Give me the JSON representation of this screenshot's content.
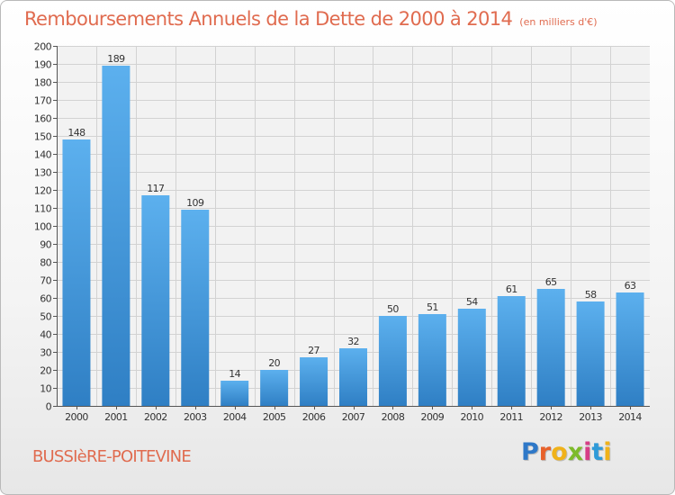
{
  "chart_data": {
    "type": "bar",
    "title": "Remboursements Annuels de la Dette de 2000 à 2014",
    "subtitle": "(en milliers d'€)",
    "categories": [
      "2000",
      "2001",
      "2002",
      "2003",
      "2004",
      "2005",
      "2006",
      "2007",
      "2008",
      "2009",
      "2010",
      "2011",
      "2012",
      "2013",
      "2014"
    ],
    "values": [
      148,
      189,
      117,
      109,
      14,
      20,
      27,
      32,
      50,
      51,
      54,
      61,
      65,
      58,
      63
    ],
    "xlabel": "",
    "ylabel": "",
    "ylim": [
      0,
      200
    ],
    "yticks": [
      0,
      10,
      20,
      30,
      40,
      50,
      60,
      70,
      80,
      90,
      100,
      110,
      120,
      130,
      140,
      150,
      160,
      170,
      180,
      190,
      200
    ],
    "grid": true,
    "bar_color": "#4a9fe0"
  },
  "footer": {
    "municipality": "BUSSIèRE-POITEVINE",
    "logo_letters": [
      "P",
      "r",
      "o",
      "x",
      "i",
      "t",
      "i"
    ],
    "logo_colors": [
      "#2e78c8",
      "#e8612a",
      "#f0b21a",
      "#7dbb2a",
      "#d63e86",
      "#2e9ad8",
      "#f0b21a"
    ]
  }
}
